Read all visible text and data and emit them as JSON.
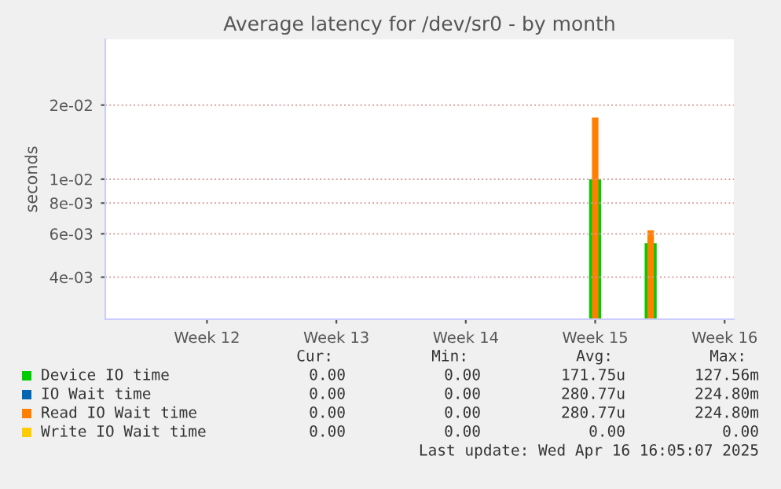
{
  "chart_data": {
    "type": "bar",
    "title": "Average latency for /dev/sr0 - by month",
    "ylabel": "seconds",
    "categories": [
      null,
      null,
      null,
      null,
      null,
      "Week 12",
      null,
      null,
      null,
      null,
      null,
      null,
      "Week 13",
      null,
      null,
      null,
      null,
      null,
      null,
      "Week 14",
      null,
      null,
      null,
      null,
      null,
      null,
      "Week 15",
      null,
      null,
      null,
      null,
      null,
      null,
      "Week 16"
    ],
    "series": [
      {
        "name": "Device IO time",
        "color": "#00cc00",
        "values": [
          null,
          null,
          null,
          null,
          null,
          null,
          null,
          null,
          null,
          null,
          null,
          null,
          null,
          null,
          null,
          null,
          null,
          null,
          null,
          null,
          null,
          null,
          null,
          null,
          null,
          null,
          0.01,
          null,
          null,
          0.0055,
          null,
          null,
          null,
          null
        ]
      },
      {
        "name": "IO Wait time",
        "color": "#0066b3",
        "values": [
          null,
          null,
          null,
          null,
          null,
          null,
          null,
          null,
          null,
          null,
          null,
          null,
          null,
          null,
          null,
          null,
          null,
          null,
          null,
          null,
          null,
          null,
          null,
          null,
          null,
          null,
          null,
          null,
          null,
          null,
          null,
          null,
          null,
          null
        ]
      },
      {
        "name": "Read IO Wait time",
        "color": "#ff8000",
        "values": [
          null,
          null,
          null,
          null,
          null,
          null,
          null,
          null,
          null,
          null,
          null,
          null,
          null,
          null,
          null,
          null,
          null,
          null,
          null,
          null,
          null,
          null,
          null,
          null,
          null,
          null,
          0.0178,
          null,
          null,
          0.0062,
          null,
          null,
          null,
          null
        ]
      },
      {
        "name": "Write IO Wait time",
        "color": "#ffcc00",
        "values": [
          null,
          null,
          null,
          null,
          null,
          null,
          null,
          null,
          null,
          null,
          null,
          null,
          null,
          null,
          null,
          null,
          null,
          null,
          null,
          null,
          null,
          null,
          null,
          null,
          null,
          null,
          null,
          null,
          null,
          null,
          null,
          null,
          null,
          null
        ]
      }
    ],
    "log": true,
    "ylim": [
      0.0027,
      0.037
    ],
    "yticks": [
      {
        "value": 0.004,
        "label": "4e-03"
      },
      {
        "value": 0.006,
        "label": "6e-03"
      },
      {
        "value": 0.008,
        "label": "8e-03"
      },
      {
        "value": 0.01,
        "label": "1e-02"
      },
      {
        "value": 0.02,
        "label": "2e-02"
      }
    ],
    "grid": "y",
    "legend": "bottom",
    "annotations": [
      "Cur:",
      "Min:",
      "Avg:",
      "Max:",
      "0.00",
      "0.00",
      "171.75u",
      "127.56m",
      "0.00",
      "0.00",
      "280.77u",
      "224.80m",
      "0.00",
      "0.00",
      "280.77u",
      "224.80m",
      "0.00",
      "0.00",
      "0.00",
      "0.00",
      "Last update: Wed Apr 16 16:05:07 2025"
    ]
  }
}
